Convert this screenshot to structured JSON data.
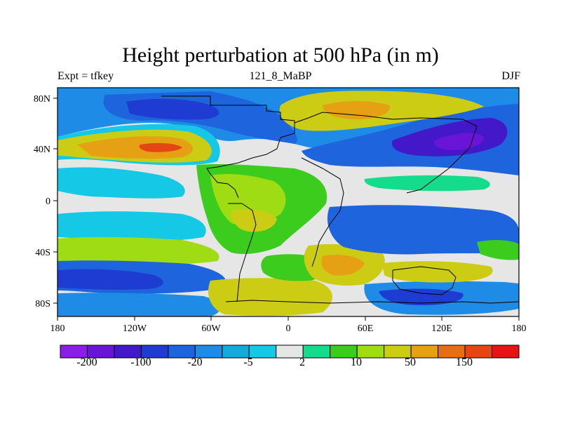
{
  "title": "Height perturbation at 500 hPa (in m)",
  "left_subtitle": "Expt = tfkey",
  "center_subtitle": "121_8_MaBP",
  "right_subtitle": "DJF",
  "map": {
    "lon_range": [
      -180,
      180
    ],
    "lat_range": [
      -90,
      90
    ],
    "lon_ticks": [
      "180",
      "120W",
      "60W",
      "0",
      "60E",
      "120E",
      "180"
    ],
    "lat_ticks": [
      "80N",
      "40N",
      "0",
      "40S",
      "80S"
    ]
  },
  "colorbar": {
    "colors": [
      "#8a1ee6",
      "#6a14d8",
      "#4218c8",
      "#1e3cd2",
      "#1e64dc",
      "#1e8ce6",
      "#14aadc",
      "#14c8e6",
      "#e6e6e6",
      "#14dc8c",
      "#3ccc1e",
      "#a0dc14",
      "#cccc14",
      "#e6a014",
      "#e66e14",
      "#e64614",
      "#e61414"
    ],
    "labels": [
      "-200",
      "-100",
      "-20",
      "-5",
      "2",
      "10",
      "50",
      "150"
    ]
  }
}
